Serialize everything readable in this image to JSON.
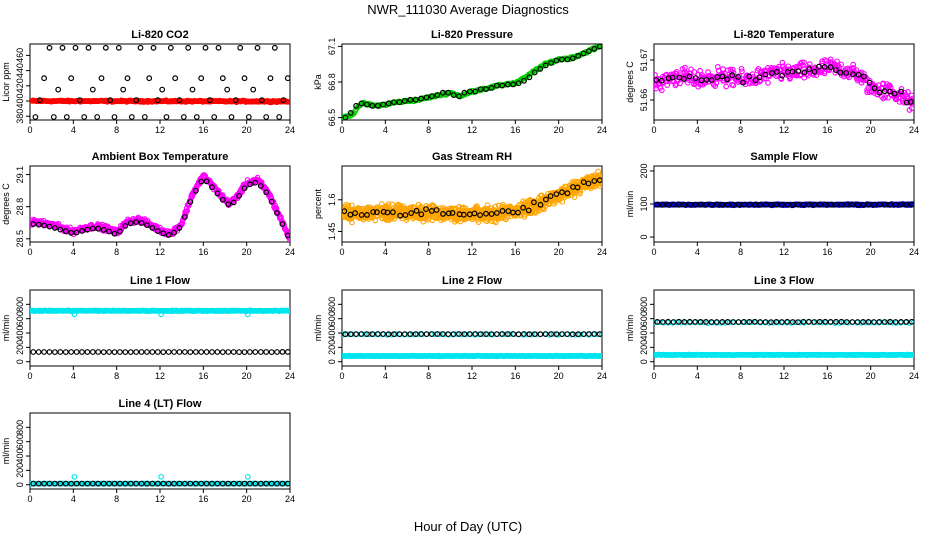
{
  "figure": {
    "title": "NWR_111030  Average Diagnostics",
    "xlabel": "Hour of Day (UTC)"
  },
  "chart_data": [
    {
      "id": "co2",
      "type": "scatter",
      "title": "Li-820 CO2",
      "ylabel": "Licor ppm",
      "xlim": [
        0,
        24
      ],
      "ylim": [
        375,
        475
      ],
      "xticks": [
        0,
        4,
        8,
        12,
        16,
        20,
        24
      ],
      "yticks": [
        380,
        400,
        420,
        440,
        460
      ],
      "series": [
        {
          "color": "#ff0000",
          "kind": "dense-band",
          "x_range": [
            0.2,
            23.8
          ],
          "y_start": 400,
          "y_end": 399.5,
          "jitter": 1.4,
          "n": 280
        },
        {
          "color": "#000000",
          "kind": "points",
          "x": [
            0.5,
            0.9,
            1.3,
            1.8,
            2.2,
            2.6,
            3.0,
            3.4,
            3.8,
            4.2,
            4.6,
            5.0,
            5.4,
            5.8,
            6.2,
            6.6,
            7.0,
            7.4,
            7.8,
            8.2,
            8.6,
            9.0,
            9.4,
            9.8,
            10.2,
            10.6,
            11.0,
            11.4,
            11.8,
            12.2,
            12.6,
            13.0,
            13.4,
            13.8,
            14.2,
            14.6,
            15.0,
            15.4,
            15.8,
            16.2,
            16.6,
            17.0,
            17.4,
            17.8,
            18.2,
            18.6,
            19.0,
            19.4,
            19.8,
            20.2,
            20.6,
            21.0,
            21.4,
            21.8,
            22.2,
            22.6,
            23.0,
            23.4,
            23.8
          ],
          "y": [
            379,
            401,
            430,
            470,
            379,
            415,
            470,
            379,
            430,
            470,
            401,
            379,
            470,
            415,
            379,
            430,
            470,
            401,
            379,
            470,
            415,
            430,
            379,
            401,
            470,
            379,
            430,
            470,
            401,
            415,
            379,
            470,
            430,
            401,
            379,
            470,
            415,
            379,
            430,
            470,
            401,
            379,
            470,
            430,
            415,
            379,
            401,
            470,
            430,
            379,
            415,
            470,
            401,
            379,
            430,
            470,
            379,
            401,
            430
          ]
        }
      ]
    },
    {
      "id": "pressure",
      "type": "scatter",
      "title": "Li-820 Pressure",
      "ylabel": "kPa",
      "xlim": [
        0,
        24
      ],
      "ylim": [
        66.48,
        67.12
      ],
      "xticks": [
        0,
        4,
        8,
        12,
        16,
        20,
        24
      ],
      "yticks": [
        66.5,
        66.8,
        67.1
      ],
      "series": [
        {
          "color": "#00cc00",
          "kind": "dense-curve",
          "x_range": [
            0.1,
            24
          ],
          "n": 260,
          "jitter": 0.012,
          "knots_x": [
            0,
            1,
            1.5,
            2,
            3,
            4,
            5,
            6,
            7,
            8,
            9,
            10,
            11,
            12,
            13,
            14,
            15,
            16,
            17,
            18,
            19,
            20,
            21,
            22,
            23,
            24
          ],
          "knots_y": [
            66.49,
            66.53,
            66.6,
            66.62,
            66.6,
            66.61,
            66.63,
            66.64,
            66.65,
            66.67,
            66.69,
            66.71,
            66.68,
            66.72,
            66.74,
            66.76,
            66.78,
            66.79,
            66.84,
            66.91,
            66.96,
            66.99,
            67.0,
            67.03,
            67.07,
            67.11
          ]
        },
        {
          "color": "#000000",
          "kind": "points",
          "x": [
            0.3,
            0.8,
            1.3,
            1.8,
            2.3,
            2.8,
            3.3,
            3.8,
            4.3,
            4.8,
            5.3,
            5.8,
            6.3,
            6.8,
            7.3,
            7.8,
            8.3,
            8.8,
            9.3,
            9.8,
            10.3,
            10.8,
            11.3,
            11.8,
            12.3,
            12.8,
            13.3,
            13.8,
            14.3,
            14.8,
            15.3,
            15.8,
            16.3,
            16.8,
            17.3,
            17.8,
            18.3,
            18.8,
            19.3,
            19.8,
            20.3,
            20.8,
            21.3,
            21.8,
            22.3,
            22.8,
            23.3,
            23.8
          ],
          "y": [
            66.5,
            66.54,
            66.6,
            66.62,
            66.61,
            66.6,
            66.6,
            66.61,
            66.62,
            66.63,
            66.63,
            66.64,
            66.65,
            66.65,
            66.66,
            66.67,
            66.68,
            66.69,
            66.71,
            66.71,
            66.69,
            66.68,
            66.71,
            66.72,
            66.72,
            66.74,
            66.74,
            66.75,
            66.77,
            66.77,
            66.78,
            66.78,
            66.79,
            66.81,
            66.84,
            66.88,
            66.91,
            66.94,
            66.96,
            66.98,
            66.99,
            66.99,
            67.0,
            67.02,
            67.04,
            67.06,
            67.08,
            67.1
          ]
        }
      ]
    },
    {
      "id": "licor-temp",
      "type": "scatter",
      "title": "Li-820 Temperature",
      "ylabel": "degrees C",
      "xlim": [
        0,
        24
      ],
      "ylim": [
        51.655,
        51.674
      ],
      "xticks": [
        0,
        4,
        8,
        12,
        16,
        20,
        24
      ],
      "yticks": [
        51.66,
        51.67
      ],
      "series": [
        {
          "color": "#ff00ff",
          "kind": "noisy-curve",
          "x_range": [
            0.1,
            24
          ],
          "n": 420,
          "jitter": 0.0032,
          "knots_x": [
            0,
            2,
            4,
            6,
            8,
            10,
            12,
            14,
            16,
            17,
            18,
            19,
            20,
            22,
            24
          ],
          "knots_y": [
            51.664,
            51.666,
            51.665,
            51.666,
            51.665,
            51.666,
            51.667,
            51.667,
            51.668,
            51.668,
            51.667,
            51.666,
            51.663,
            51.662,
            51.659
          ]
        },
        {
          "color": "#000000",
          "kind": "noisy-curve",
          "x_range": [
            0.3,
            23.8
          ],
          "n": 48,
          "jitter": 0.0015,
          "knots_x": [
            0,
            2,
            4,
            6,
            8,
            10,
            12,
            14,
            16,
            17,
            18,
            19,
            20,
            22,
            24
          ],
          "knots_y": [
            51.664,
            51.666,
            51.665,
            51.666,
            51.665,
            51.666,
            51.667,
            51.667,
            51.668,
            51.668,
            51.667,
            51.666,
            51.663,
            51.662,
            51.659
          ]
        }
      ]
    },
    {
      "id": "ambient-temp",
      "type": "scatter",
      "title": "Ambient Box Temperature",
      "ylabel": "degrees C",
      "xlim": [
        0,
        24
      ],
      "ylim": [
        28.47,
        29.18
      ],
      "xticks": [
        0,
        4,
        8,
        12,
        16,
        20,
        24
      ],
      "yticks": [
        28.5,
        28.8,
        29.1
      ],
      "series": [
        {
          "color": "#ff00ff",
          "kind": "dense-curve",
          "x_range": [
            0.1,
            24
          ],
          "n": 520,
          "jitter": 0.035,
          "knots_x": [
            0,
            1,
            2,
            3,
            4,
            5,
            6,
            7,
            8,
            9,
            10,
            11,
            12,
            13,
            14,
            15,
            15.5,
            16,
            17,
            18,
            18.5,
            19,
            20,
            21,
            22,
            23,
            24
          ],
          "knots_y": [
            28.66,
            28.65,
            28.63,
            28.6,
            28.57,
            28.6,
            28.62,
            28.6,
            28.56,
            28.66,
            28.68,
            28.64,
            28.58,
            28.55,
            28.64,
            28.92,
            29.0,
            29.09,
            28.98,
            28.86,
            28.83,
            28.88,
            29.02,
            29.05,
            28.93,
            28.72,
            28.5
          ]
        },
        {
          "color": "#000000",
          "kind": "dense-curve",
          "x_range": [
            0.3,
            23.8
          ],
          "n": 48,
          "jitter": 0.0,
          "knots_x": [
            0,
            1,
            2,
            3,
            4,
            5,
            6,
            7,
            8,
            9,
            10,
            11,
            12,
            13,
            14,
            15,
            15.5,
            16,
            17,
            18,
            18.5,
            19,
            20,
            21,
            22,
            23,
            24
          ],
          "knots_y": [
            28.64,
            28.63,
            28.61,
            28.58,
            28.55,
            28.58,
            28.6,
            28.58,
            28.54,
            28.64,
            28.66,
            28.62,
            28.56,
            28.53,
            28.62,
            28.9,
            28.98,
            29.07,
            28.96,
            28.84,
            28.81,
            28.86,
            29.0,
            29.03,
            28.91,
            28.7,
            28.49
          ]
        }
      ]
    },
    {
      "id": "gas-rh",
      "type": "scatter",
      "title": "Gas Stream RH",
      "ylabel": "percent",
      "xlim": [
        0,
        24
      ],
      "ylim": [
        1.4,
        1.76
      ],
      "xticks": [
        0,
        4,
        8,
        12,
        16,
        20,
        24
      ],
      "yticks": [
        1.45,
        1.6
      ],
      "series": [
        {
          "color": "#ffa500",
          "kind": "noisy-curve",
          "x_range": [
            0.1,
            24
          ],
          "n": 1100,
          "jitter": 0.05,
          "knots_x": [
            0,
            4,
            8,
            12,
            14,
            16,
            18,
            20,
            22,
            24
          ],
          "knots_y": [
            1.535,
            1.54,
            1.54,
            1.53,
            1.53,
            1.545,
            1.575,
            1.62,
            1.67,
            1.7
          ]
        },
        {
          "color": "#000000",
          "kind": "noisy-curve",
          "x_range": [
            0.3,
            23.8
          ],
          "n": 48,
          "jitter": 0.025,
          "knots_x": [
            0,
            4,
            8,
            12,
            14,
            16,
            18,
            20,
            22,
            24
          ],
          "knots_y": [
            1.535,
            1.54,
            1.54,
            1.53,
            1.53,
            1.545,
            1.575,
            1.62,
            1.67,
            1.7
          ]
        }
      ]
    },
    {
      "id": "sample-flow",
      "type": "scatter",
      "title": "Sample Flow",
      "ylabel": "ml/min",
      "xlim": [
        0,
        24
      ],
      "ylim": [
        -15,
        215
      ],
      "xticks": [
        0,
        4,
        8,
        12,
        16,
        20,
        24
      ],
      "yticks": [
        0,
        100,
        200
      ],
      "series": [
        {
          "color": "#0000cc",
          "kind": "dense-band",
          "x_range": [
            0.1,
            24
          ],
          "y_start": 98,
          "y_end": 98,
          "jitter": 2.5,
          "n": 260
        },
        {
          "color": "#000000",
          "kind": "dense-band",
          "x_range": [
            0.3,
            23.8
          ],
          "y_start": 98,
          "y_end": 98,
          "jitter": 0.5,
          "n": 48
        }
      ]
    },
    {
      "id": "line1",
      "type": "scatter",
      "title": "Line 1 Flow",
      "ylabel": "ml/min",
      "xlim": [
        0,
        24
      ],
      "ylim": [
        -60,
        1000
      ],
      "xticks": [
        0,
        4,
        8,
        12,
        16,
        20,
        24
      ],
      "yticks": [
        0,
        200,
        400,
        600,
        800
      ],
      "series": [
        {
          "color": "#00e5ee",
          "kind": "dense-band",
          "x_range": [
            0.1,
            24
          ],
          "y_start": 710,
          "y_end": 710,
          "jitter": 8,
          "n": 300,
          "outliers_x": [
            4.1,
            12.1,
            20.1
          ],
          "outliers_y": [
            660,
            660,
            660
          ]
        },
        {
          "color": "#000000",
          "kind": "dense-band",
          "x_range": [
            0.3,
            23.8
          ],
          "y_start": 135,
          "y_end": 135,
          "jitter": 2,
          "n": 48
        }
      ]
    },
    {
      "id": "line2",
      "type": "scatter",
      "title": "Line 2 Flow",
      "ylabel": "ml/min",
      "xlim": [
        0,
        24
      ],
      "ylim": [
        -60,
        1000
      ],
      "xticks": [
        0,
        4,
        8,
        12,
        16,
        20,
        24
      ],
      "yticks": [
        0,
        200,
        400,
        600,
        800
      ],
      "series": [
        {
          "color": "#00e5ee",
          "kind": "dense-band",
          "x_range": [
            0.1,
            24
          ],
          "y_start": 80,
          "y_end": 80,
          "jitter": 6,
          "n": 300
        },
        {
          "color": "#00e5ee",
          "kind": "dense-band",
          "x_range": [
            0.1,
            24
          ],
          "y_start": 380,
          "y_end": 380,
          "jitter": 10,
          "n": 60
        },
        {
          "color": "#000000",
          "kind": "dense-band",
          "x_range": [
            0.3,
            23.8
          ],
          "y_start": 385,
          "y_end": 385,
          "jitter": 3,
          "n": 48
        }
      ]
    },
    {
      "id": "line3",
      "type": "scatter",
      "title": "Line 3 Flow",
      "ylabel": "ml/min",
      "xlim": [
        0,
        24
      ],
      "ylim": [
        -60,
        1000
      ],
      "xticks": [
        0,
        4,
        8,
        12,
        16,
        20,
        24
      ],
      "yticks": [
        0,
        200,
        400,
        600,
        800
      ],
      "series": [
        {
          "color": "#00e5ee",
          "kind": "dense-band",
          "x_range": [
            0.1,
            24
          ],
          "y_start": 95,
          "y_end": 95,
          "jitter": 6,
          "n": 300
        },
        {
          "color": "#00e5ee",
          "kind": "dense-band",
          "x_range": [
            0.1,
            24
          ],
          "y_start": 545,
          "y_end": 545,
          "jitter": 10,
          "n": 60
        },
        {
          "color": "#000000",
          "kind": "dense-band",
          "x_range": [
            0.3,
            23.8
          ],
          "y_start": 555,
          "y_end": 555,
          "jitter": 4,
          "n": 48
        }
      ]
    },
    {
      "id": "line4",
      "type": "scatter",
      "title": "Line 4 (LT) Flow",
      "ylabel": "ml/min",
      "xlim": [
        0,
        24
      ],
      "ylim": [
        -60,
        1000
      ],
      "xticks": [
        0,
        4,
        8,
        12,
        16,
        20,
        24
      ],
      "yticks": [
        0,
        200,
        400,
        600,
        800
      ],
      "series": [
        {
          "color": "#00e5ee",
          "kind": "dense-band",
          "x_range": [
            0.1,
            24
          ],
          "y_start": 15,
          "y_end": 15,
          "jitter": 2,
          "n": 200,
          "outliers_x": [
            4.1,
            12.1,
            20.1
          ],
          "outliers_y": [
            110,
            110,
            110
          ]
        },
        {
          "color": "#000000",
          "kind": "dense-band",
          "x_range": [
            0.3,
            23.8
          ],
          "y_start": 15,
          "y_end": 15,
          "jitter": 1,
          "n": 48
        }
      ]
    }
  ]
}
